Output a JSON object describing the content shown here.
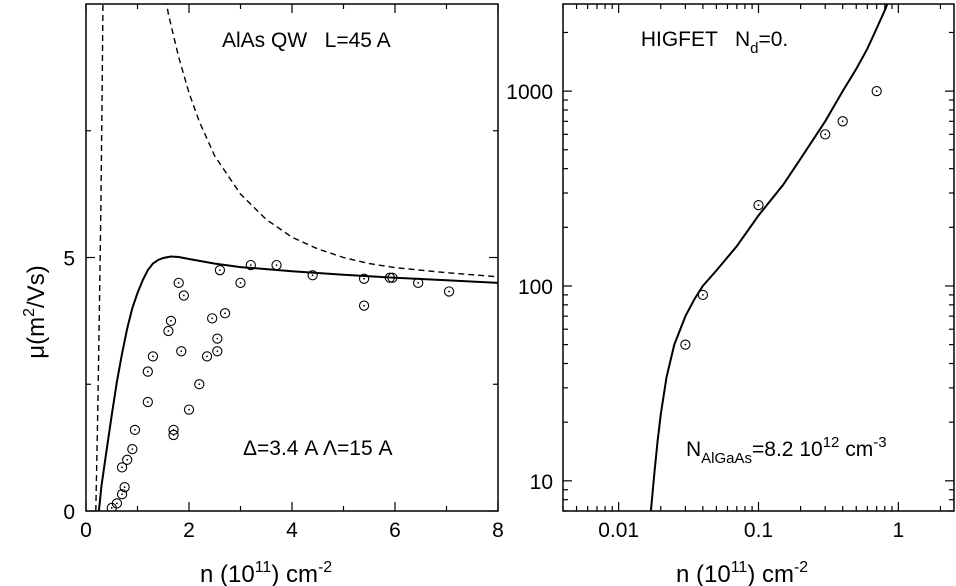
{
  "chart_data": [
    {
      "type": "scatter",
      "annotations": {
        "title": "AlAs QW   L=45 A",
        "params": "Δ=3.4 A Λ=15 A"
      },
      "xlabel": {
        "base": "n (10",
        "sup1": "11",
        "mid": ") cm",
        "sup2": "-2"
      },
      "ylabel": {
        "base": "μ(m",
        "sup": "2",
        "end": "/Vs)"
      },
      "xlim": [
        0,
        8
      ],
      "ylim": [
        0,
        10
      ],
      "x_ticks": [
        "0",
        "2",
        "4",
        "6",
        "8"
      ],
      "y_ticks": [
        "0",
        "5"
      ],
      "series": [
        {
          "style": "markers",
          "points": [
            [
              0.5,
              0.06
            ],
            [
              0.6,
              0.15
            ],
            [
              0.7,
              0.33
            ],
            [
              0.75,
              0.47
            ],
            [
              0.7,
              0.86
            ],
            [
              0.8,
              1.01
            ],
            [
              0.9,
              1.22
            ],
            [
              0.95,
              1.6
            ],
            [
              1.2,
              2.15
            ],
            [
              1.2,
              2.75
            ],
            [
              1.3,
              3.05
            ],
            [
              1.6,
              3.55
            ],
            [
              1.65,
              3.75
            ],
            [
              1.7,
              1.5
            ],
            [
              1.7,
              1.6
            ],
            [
              1.8,
              4.5
            ],
            [
              1.85,
              3.15
            ],
            [
              1.9,
              4.25
            ],
            [
              2.0,
              2.0
            ],
            [
              2.2,
              2.5
            ],
            [
              2.35,
              3.05
            ],
            [
              2.45,
              3.8
            ],
            [
              2.55,
              3.4
            ],
            [
              2.55,
              3.15
            ],
            [
              2.6,
              4.75
            ],
            [
              2.7,
              3.9
            ],
            [
              3.0,
              4.5
            ],
            [
              3.2,
              4.85
            ],
            [
              3.7,
              4.85
            ],
            [
              4.4,
              4.65
            ],
            [
              5.4,
              4.05
            ],
            [
              5.4,
              4.58
            ],
            [
              5.9,
              4.6
            ],
            [
              5.95,
              4.6
            ],
            [
              6.45,
              4.5
            ],
            [
              7.05,
              4.33
            ]
          ]
        },
        {
          "style": "solid",
          "points": [
            [
              0.25,
              0.0
            ],
            [
              0.3,
              0.5
            ],
            [
              0.4,
              1.2
            ],
            [
              0.5,
              1.9
            ],
            [
              0.6,
              2.55
            ],
            [
              0.7,
              3.1
            ],
            [
              0.8,
              3.6
            ],
            [
              0.9,
              4.0
            ],
            [
              1.0,
              4.3
            ],
            [
              1.1,
              4.55
            ],
            [
              1.2,
              4.75
            ],
            [
              1.3,
              4.88
            ],
            [
              1.4,
              4.95
            ],
            [
              1.5,
              4.99
            ],
            [
              1.65,
              5.02
            ],
            [
              1.8,
              5.01
            ],
            [
              2.0,
              4.97
            ],
            [
              2.5,
              4.88
            ],
            [
              3.0,
              4.81
            ],
            [
              4.0,
              4.73
            ],
            [
              5.0,
              4.66
            ],
            [
              6.0,
              4.6
            ],
            [
              7.0,
              4.55
            ],
            [
              8.0,
              4.5
            ]
          ]
        },
        {
          "style": "dashed",
          "points": [
            [
              1.55,
              10.1
            ],
            [
              1.6,
              9.8
            ],
            [
              1.8,
              8.95
            ],
            [
              2.0,
              8.25
            ],
            [
              2.2,
              7.68
            ],
            [
              2.5,
              7.0
            ],
            [
              3.0,
              6.25
            ],
            [
              3.5,
              5.75
            ],
            [
              4.0,
              5.4
            ],
            [
              4.5,
              5.17
            ],
            [
              5.0,
              5.0
            ],
            [
              5.5,
              4.88
            ],
            [
              6.0,
              4.8
            ],
            [
              7.0,
              4.7
            ],
            [
              8.0,
              4.62
            ]
          ]
        },
        {
          "style": "dashed",
          "points": [
            [
              0.19,
              0.0
            ],
            [
              0.23,
              2.0
            ],
            [
              0.26,
              4.0
            ],
            [
              0.29,
              6.0
            ],
            [
              0.31,
              8.0
            ],
            [
              0.33,
              10.1
            ]
          ]
        }
      ]
    },
    {
      "type": "scatter",
      "annotations": {
        "title_base": "HIGFET   N",
        "title_sub": "d",
        "title_end": "=0.",
        "note_base": "N",
        "note_sub": "AlGaAs",
        "note_mid": "=8.2 10",
        "note_sup": "12",
        "note_end": " cm",
        "note_sup2": "-3"
      },
      "xlabel": {
        "base": "n (10",
        "sup1": "11",
        "mid": ") cm",
        "sup2": "-2"
      },
      "x_scale": "log",
      "y_scale": "log",
      "xlim": [
        0.004,
        2.5
      ],
      "ylim": [
        7,
        2800
      ],
      "x_ticks": [
        "0.01",
        "0.1",
        "1"
      ],
      "y_ticks": [
        "10",
        "100",
        "1000"
      ],
      "series": [
        {
          "style": "markers",
          "points": [
            [
              0.03,
              50
            ],
            [
              0.04,
              90
            ],
            [
              0.1,
              260
            ],
            [
              0.3,
              600
            ],
            [
              0.4,
              700
            ],
            [
              0.7,
              1000
            ]
          ]
        },
        {
          "style": "solid",
          "points": [
            [
              0.017,
              7
            ],
            [
              0.018,
              11
            ],
            [
              0.019,
              16
            ],
            [
              0.02,
              22
            ],
            [
              0.022,
              34
            ],
            [
              0.025,
              50
            ],
            [
              0.03,
              70
            ],
            [
              0.035,
              86
            ],
            [
              0.04,
              100
            ],
            [
              0.05,
              120
            ],
            [
              0.07,
              160
            ],
            [
              0.1,
              230
            ],
            [
              0.15,
              330
            ],
            [
              0.2,
              450
            ],
            [
              0.3,
              700
            ],
            [
              0.4,
              1000
            ],
            [
              0.5,
              1300
            ],
            [
              0.6,
              1650
            ],
            [
              0.7,
              2100
            ],
            [
              0.8,
              2600
            ],
            [
              0.85,
              2900
            ]
          ]
        }
      ]
    }
  ]
}
